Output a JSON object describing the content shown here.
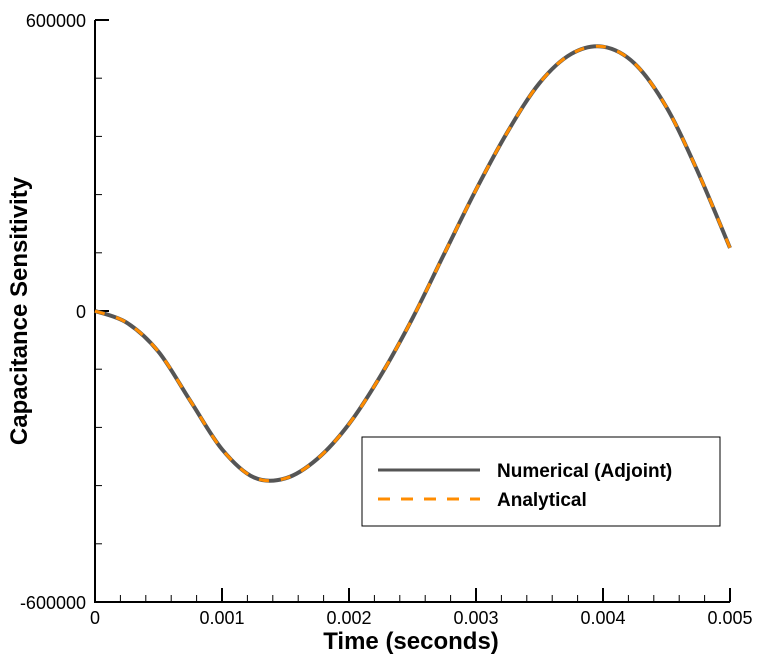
{
  "chart_data": {
    "type": "line",
    "title": "",
    "xlabel": "Time (seconds)",
    "ylabel": "Capacitance Sensitivity",
    "xlim": [
      0,
      0.005
    ],
    "ylim": [
      -600000,
      600000
    ],
    "x_ticks": [
      0,
      0.001,
      0.002,
      0.003,
      0.004,
      0.005
    ],
    "x_tick_labels": [
      "0",
      "0.001",
      "0.002",
      "0.003",
      "0.004",
      "0.005"
    ],
    "y_ticks": [
      -600000,
      0,
      600000
    ],
    "y_tick_labels": [
      "-600000",
      "0",
      "600000"
    ],
    "grid": false,
    "legend_position": "lower-right",
    "x": [
      0,
      0.00025,
      0.0005,
      0.00075,
      0.001,
      0.00125,
      0.0015,
      0.00175,
      0.002,
      0.00225,
      0.0025,
      0.00275,
      0.003,
      0.00325,
      0.0035,
      0.00375,
      0.004,
      0.00425,
      0.0045,
      0.00475,
      0.005
    ],
    "series": [
      {
        "name": "Numerical (Adjoint)",
        "color": "#555555",
        "style": "solid",
        "values": [
          0,
          -24000,
          -84000,
          -185000,
          -285000,
          -343000,
          -345000,
          -305000,
          -233000,
          -133000,
          -15000,
          118000,
          250000,
          370000,
          470000,
          530000,
          545000,
          510000,
          420000,
          285000,
          130000
        ]
      },
      {
        "name": "Analytical",
        "color": "#ff8c00",
        "style": "dashed",
        "values": [
          0,
          -24000,
          -84000,
          -185000,
          -285000,
          -343000,
          -345000,
          -305000,
          -233000,
          -133000,
          -15000,
          118000,
          250000,
          370000,
          470000,
          530000,
          545000,
          510000,
          420000,
          285000,
          130000
        ]
      }
    ]
  }
}
